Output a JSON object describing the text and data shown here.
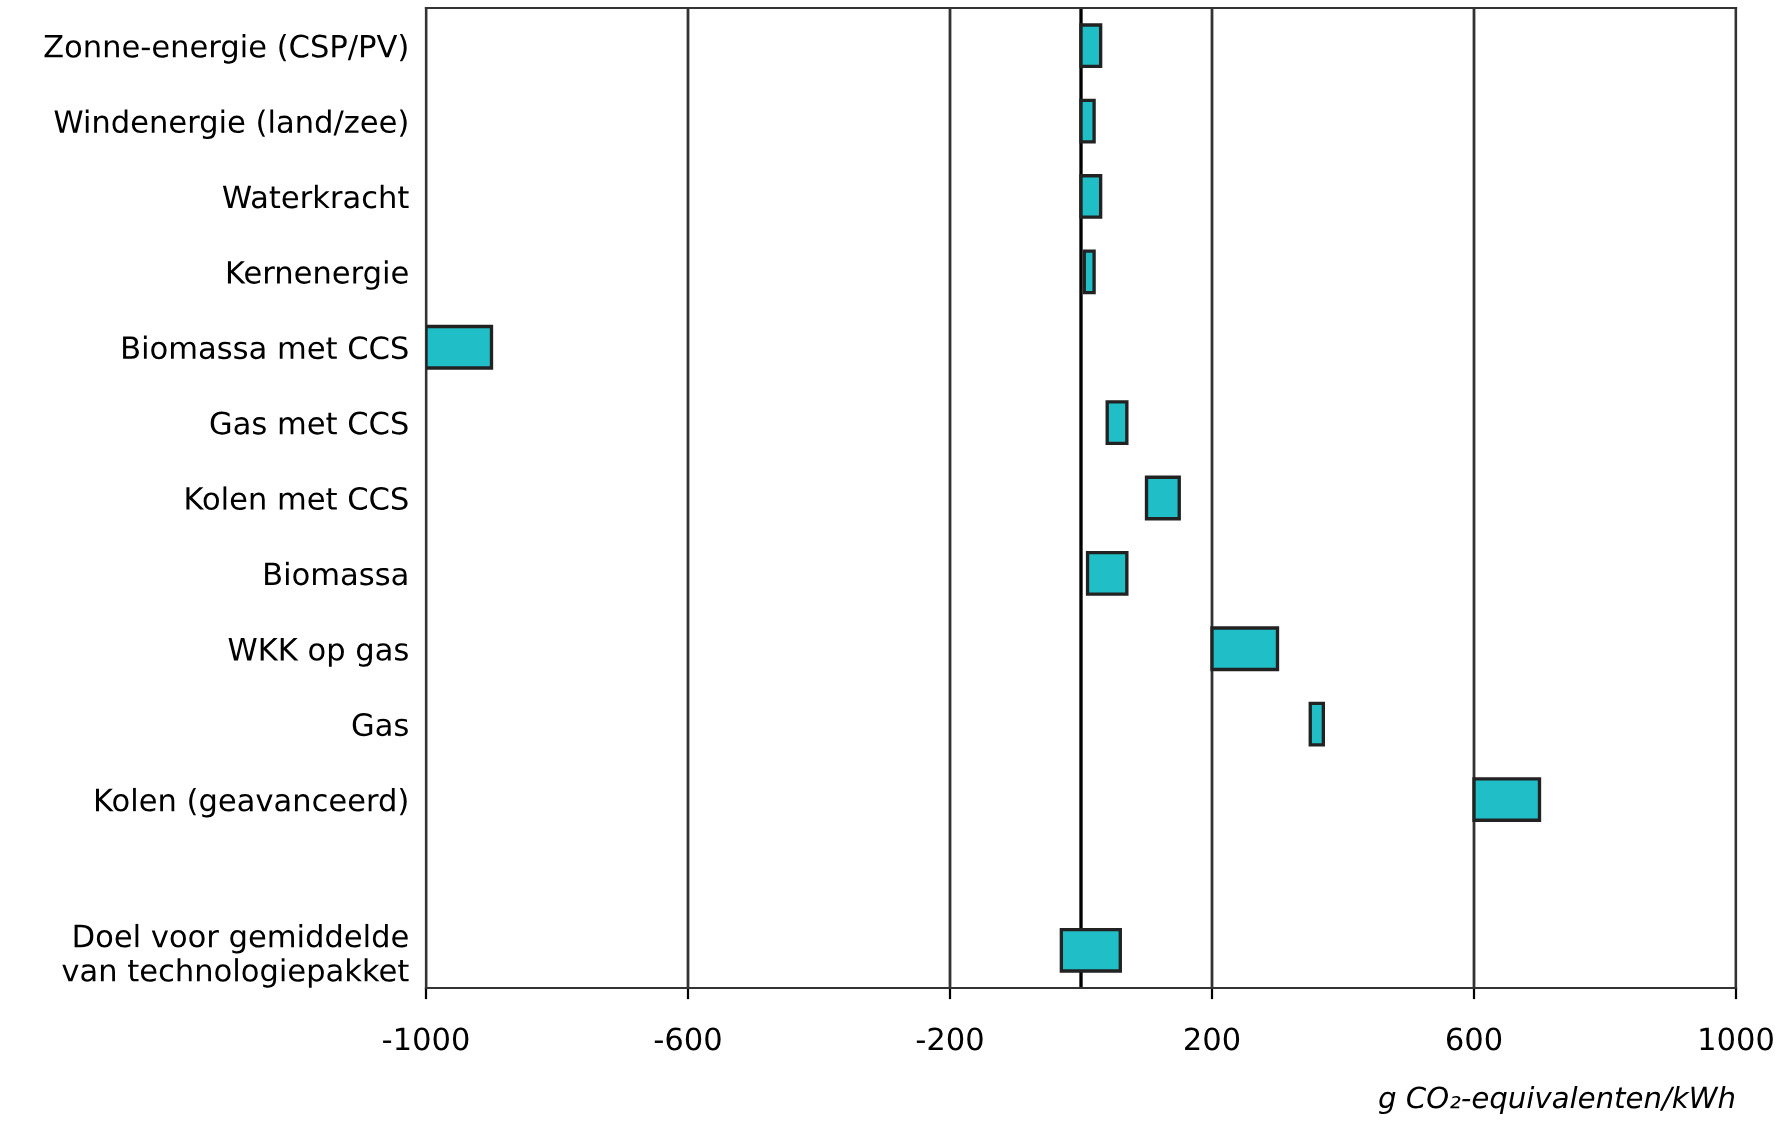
{
  "chart_data": {
    "type": "bar",
    "orientation": "horizontal",
    "xlabel": "g CO₂-equivalenten/kWh",
    "categories": [
      "Zonne-energie (CSP/PV)",
      "Windenergie (land/zee)",
      "Waterkracht",
      "Kernenergie",
      "Biomassa met CCS",
      "Gas met CCS",
      "Kolen met CCS",
      "Biomassa",
      "WKK op gas",
      "Gas",
      "Kolen (geavanceerd)",
      null,
      "Doel voor gemiddelde\nvan technologiepakket"
    ],
    "values": [
      30,
      20,
      30,
      15,
      100,
      30,
      50,
      60,
      100,
      20,
      100,
      null,
      90
    ],
    "base": [
      0,
      0,
      0,
      5,
      -1000,
      40,
      100,
      10,
      200,
      350,
      600,
      null,
      -30
    ],
    "color": "#20bec6",
    "xlim": [
      -1000,
      1000
    ],
    "xticks": [
      -1000,
      -600,
      -200,
      200,
      600,
      1000
    ],
    "grid": "x",
    "ref_lines": [
      {
        "axis": "x",
        "value": 0,
        "color": "#000000"
      }
    ]
  }
}
